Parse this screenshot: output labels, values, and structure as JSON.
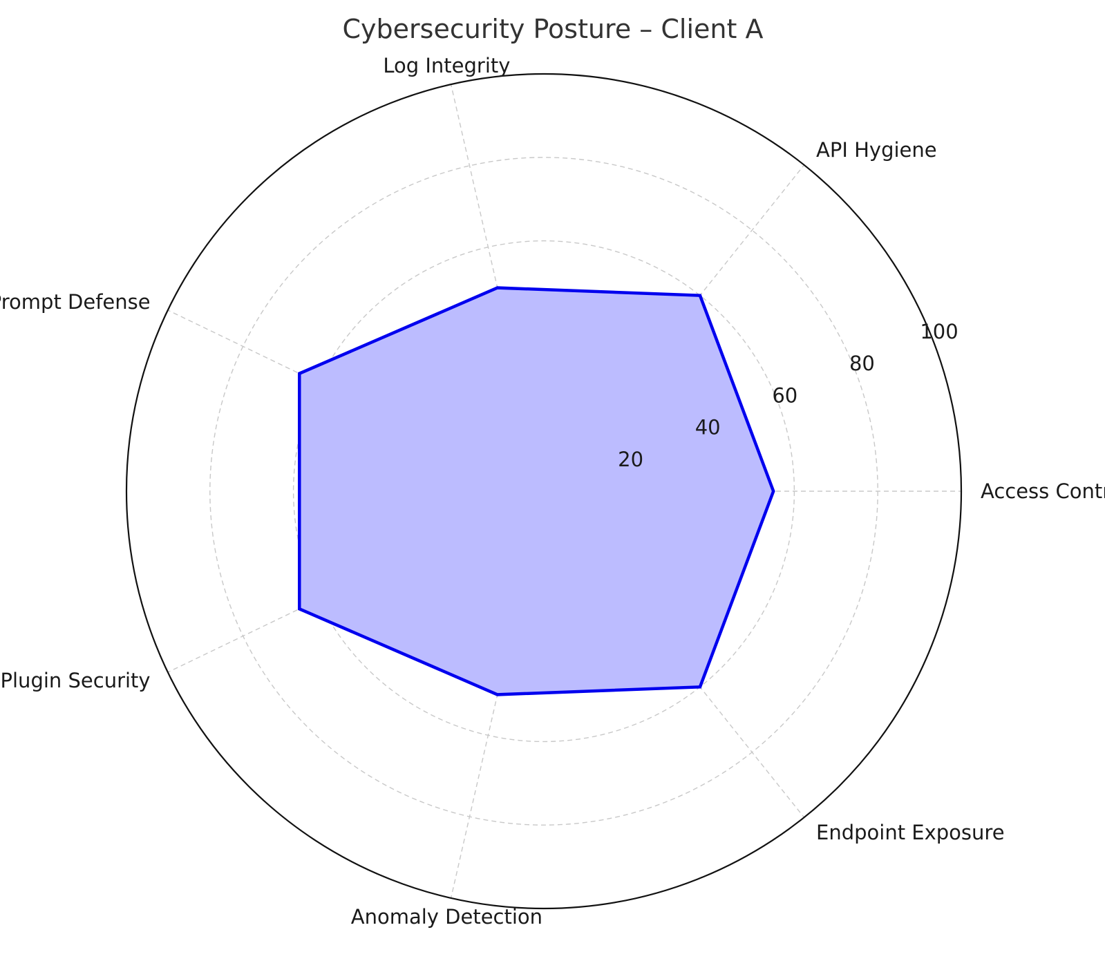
{
  "chart_data": {
    "type": "radar",
    "title": "Cybersecurity Posture – Client A",
    "categories": [
      "Access Controls",
      "API Hygiene",
      "Log Integrity",
      "System Prompt Defense",
      "Plugin Security",
      "Anomaly Detection",
      "Endpoint Exposure"
    ],
    "series": [
      {
        "values": [
          55,
          60,
          50,
          65,
          65,
          50,
          60
        ]
      }
    ],
    "rlim": [
      0,
      100
    ],
    "rticks": [
      20,
      40,
      60,
      80,
      100
    ],
    "rtick_labels": [
      "20",
      "40",
      "60",
      "80",
      "100"
    ],
    "grid": true,
    "colors": {
      "line": "#0000ee",
      "fill": "#bcbcff",
      "grid": "#c8c8c8",
      "frame": "#111111"
    }
  }
}
